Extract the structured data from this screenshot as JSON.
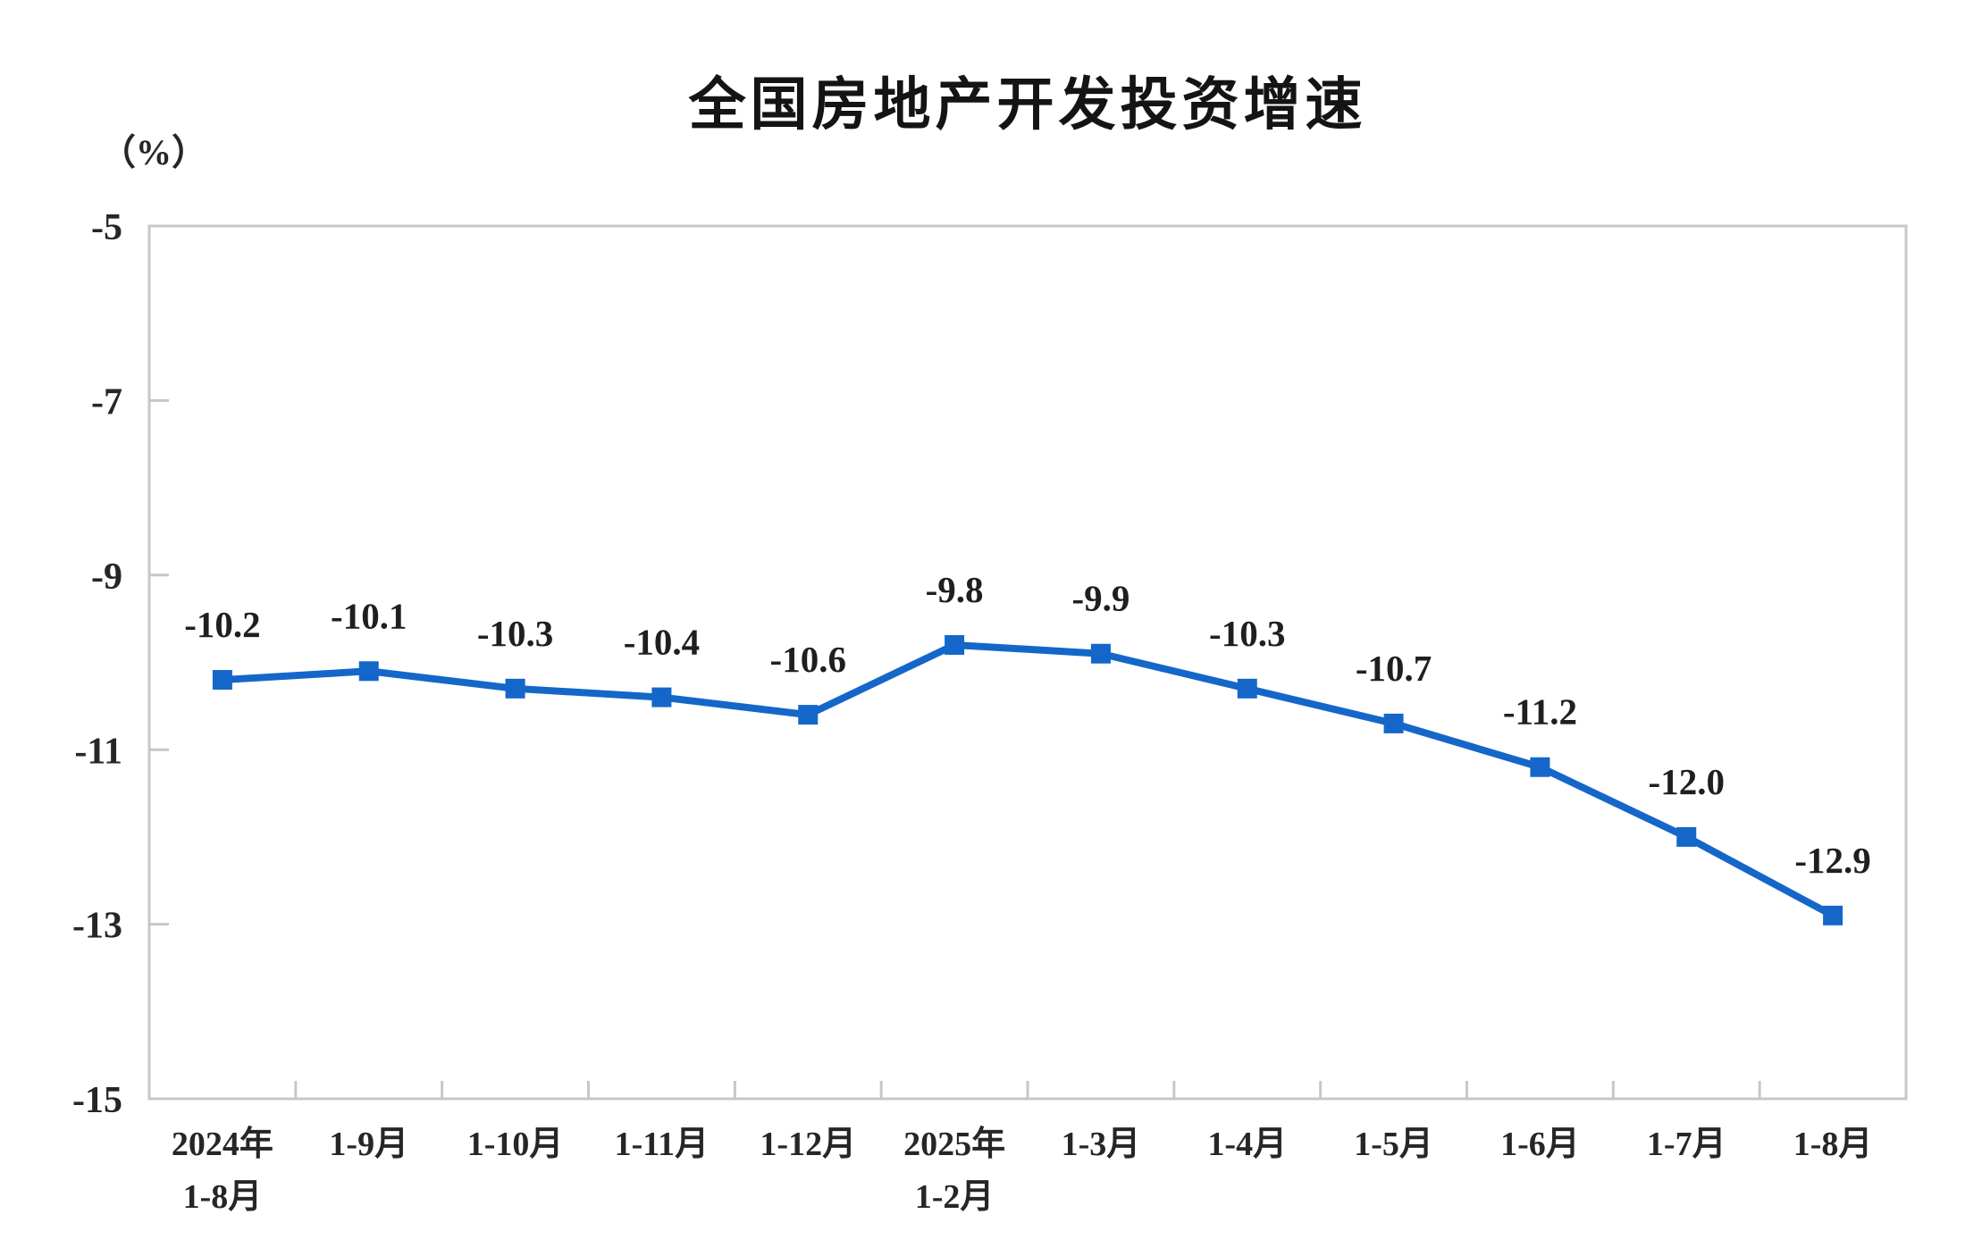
{
  "header": {
    "title": "全国房地产开发投资增速",
    "y_unit_label": "（%）"
  },
  "chart_data": {
    "type": "line",
    "title": "全国房地产开发投资增速",
    "ylabel": "（%）",
    "xlabel": "",
    "categories": [
      "2024年\n1-8月",
      "1-9月",
      "1-10月",
      "1-11月",
      "1-12月",
      "2025年\n1-2月",
      "1-3月",
      "1-4月",
      "1-5月",
      "1-6月",
      "1-7月",
      "1-8月"
    ],
    "series": [
      {
        "name": "全国房地产开发投资增速",
        "values": [
          -10.2,
          -10.1,
          -10.3,
          -10.4,
          -10.6,
          -9.8,
          -9.9,
          -10.3,
          -10.7,
          -11.2,
          -12.0,
          -12.9
        ],
        "data_labels": [
          "-10.2",
          "-10.1",
          "-10.3",
          "-10.4",
          "-10.6",
          "-9.8",
          "-9.9",
          "-10.3",
          "-10.7",
          "-11.2",
          "-12.0",
          "-12.9"
        ],
        "color": "#1467C9",
        "marker": "square"
      }
    ],
    "ylim": [
      -15,
      -5
    ],
    "y_ticks": [
      -5,
      -7,
      -9,
      -11,
      -13,
      -15
    ],
    "y_tick_labels": [
      "-5",
      "-7",
      "-9",
      "-11",
      "-13",
      "-15"
    ],
    "grid": false,
    "legend": "none",
    "axis_color": "#C7C7C7",
    "text_color": "#262626"
  }
}
